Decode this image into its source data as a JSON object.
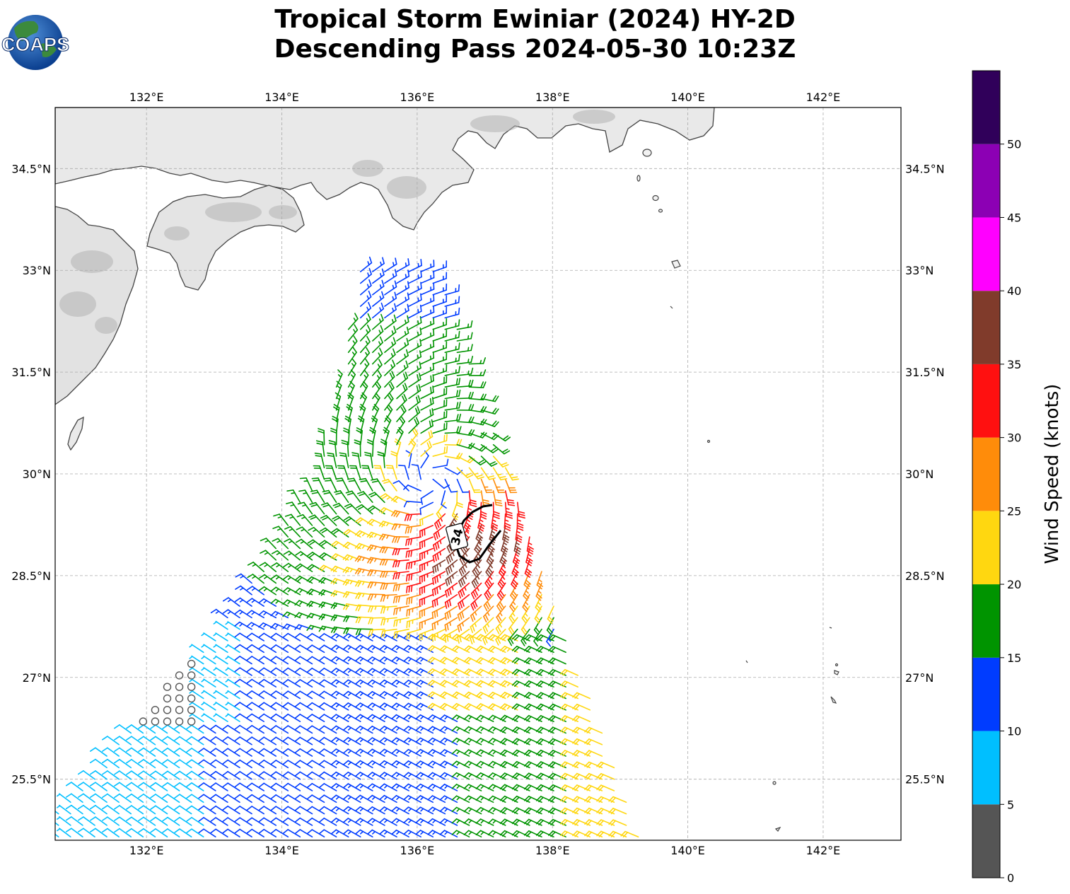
{
  "title": {
    "line1": "Tropical Storm Ewiniar (2024) HY-2D",
    "line2": "Descending Pass 2024-05-30 10:23Z"
  },
  "logo": {
    "text": "COAPS"
  },
  "chart_data": {
    "type": "map-wind-barbs",
    "lon_range": [
      130.65,
      143.15
    ],
    "lat_range": [
      24.6,
      35.4
    ],
    "lon_ticks": [
      132,
      134,
      136,
      138,
      140,
      142
    ],
    "lat_ticks": [
      25.5,
      27,
      28.5,
      30,
      31.5,
      33,
      34.5
    ],
    "lon_labels": [
      "132°E",
      "134°E",
      "136°E",
      "138°E",
      "140°E",
      "142°E"
    ],
    "lat_labels": [
      "25.5°N",
      "27°N",
      "28.5°N",
      "30°N",
      "31.5°N",
      "33°N",
      "34.5°N"
    ],
    "grid": true,
    "storm_center": {
      "lon": 136.2,
      "lat": 29.9
    },
    "wind_radius_contour": {
      "label": "34",
      "units": "knots"
    },
    "colorbar": {
      "label": "Wind Speed (knots)",
      "min": 0,
      "max": 55,
      "ticks": [
        0,
        5,
        10,
        15,
        20,
        25,
        30,
        35,
        40,
        45,
        50
      ],
      "bins": [
        {
          "range": [
            0,
            5
          ],
          "color": "#555555"
        },
        {
          "range": [
            5,
            10
          ],
          "color": "#00bfff"
        },
        {
          "range": [
            10,
            15
          ],
          "color": "#003cff"
        },
        {
          "range": [
            15,
            20
          ],
          "color": "#009400"
        },
        {
          "range": [
            20,
            25
          ],
          "color": "#ffd710"
        },
        {
          "range": [
            25,
            30
          ],
          "color": "#ff8c0a"
        },
        {
          "range": [
            30,
            35
          ],
          "color": "#ff1010"
        },
        {
          "range": [
            35,
            40
          ],
          "color": "#803b2b"
        },
        {
          "range": [
            40,
            45
          ],
          "color": "#ff00ff"
        },
        {
          "range": [
            45,
            50
          ],
          "color": "#8c00b4"
        },
        {
          "range": [
            50,
            55
          ],
          "color": "#30005a"
        }
      ]
    },
    "swath_speed_knots": {
      "near_center": 10,
      "eye_ring": 22,
      "inner_core": 18,
      "south_east_max": 37,
      "north_arm": 17,
      "south_field": 16,
      "west_edge": 3
    }
  }
}
